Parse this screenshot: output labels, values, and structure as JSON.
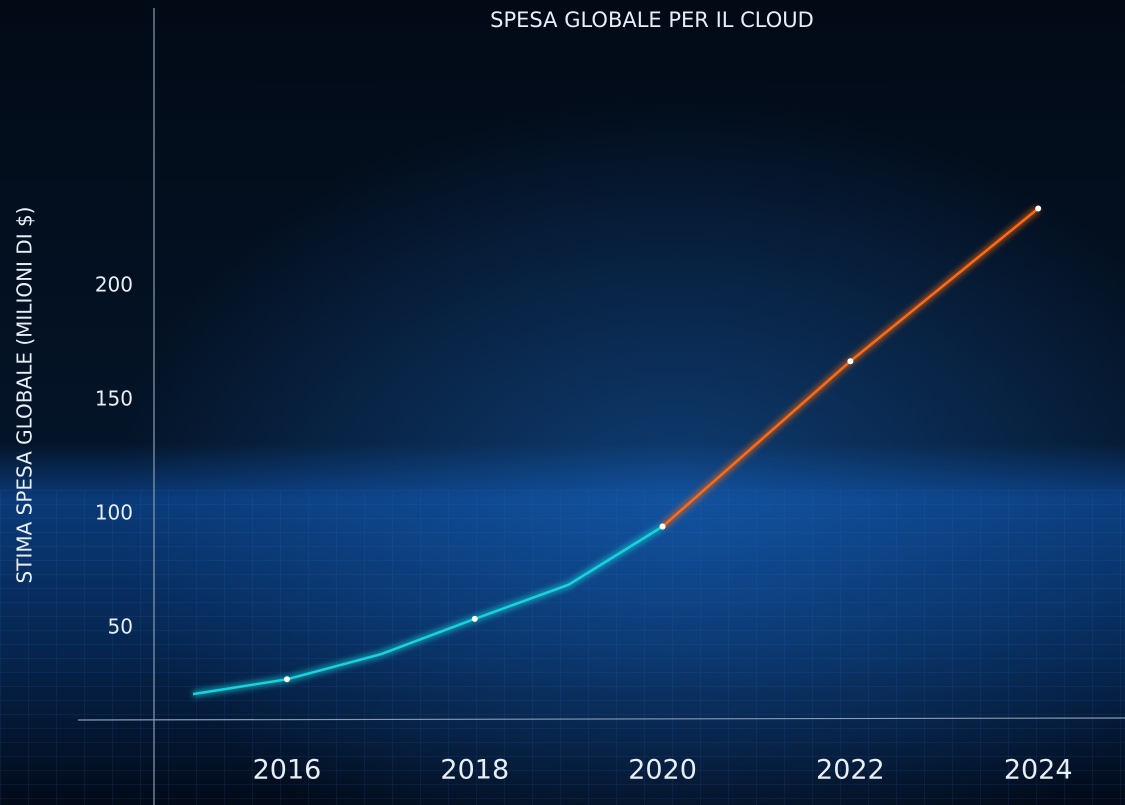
{
  "chart_data": {
    "type": "line",
    "title": "SPESA GLOBALE PER IL CLOUD",
    "y_label": "STIMA SPESA GLOBALE (MILIONI DI $)",
    "series": [
      {
        "color": "#19d3dc",
        "x": [
          2015,
          2016,
          2017,
          2018,
          2019,
          2020
        ],
        "values": [
          21,
          27.5,
          38.5,
          54,
          69,
          94.5
        ]
      },
      {
        "color": "#ff6a10",
        "x": [
          2020,
          2022,
          2024
        ],
        "values": [
          94.5,
          167,
          234
        ]
      }
    ],
    "xlim": [
      2014.6,
      2024.9
    ],
    "xticks": [
      2016,
      2018,
      2020,
      2022,
      2024
    ],
    "ylim": [
      10,
      320
    ],
    "yticks": [
      50,
      100,
      150,
      200
    ]
  }
}
